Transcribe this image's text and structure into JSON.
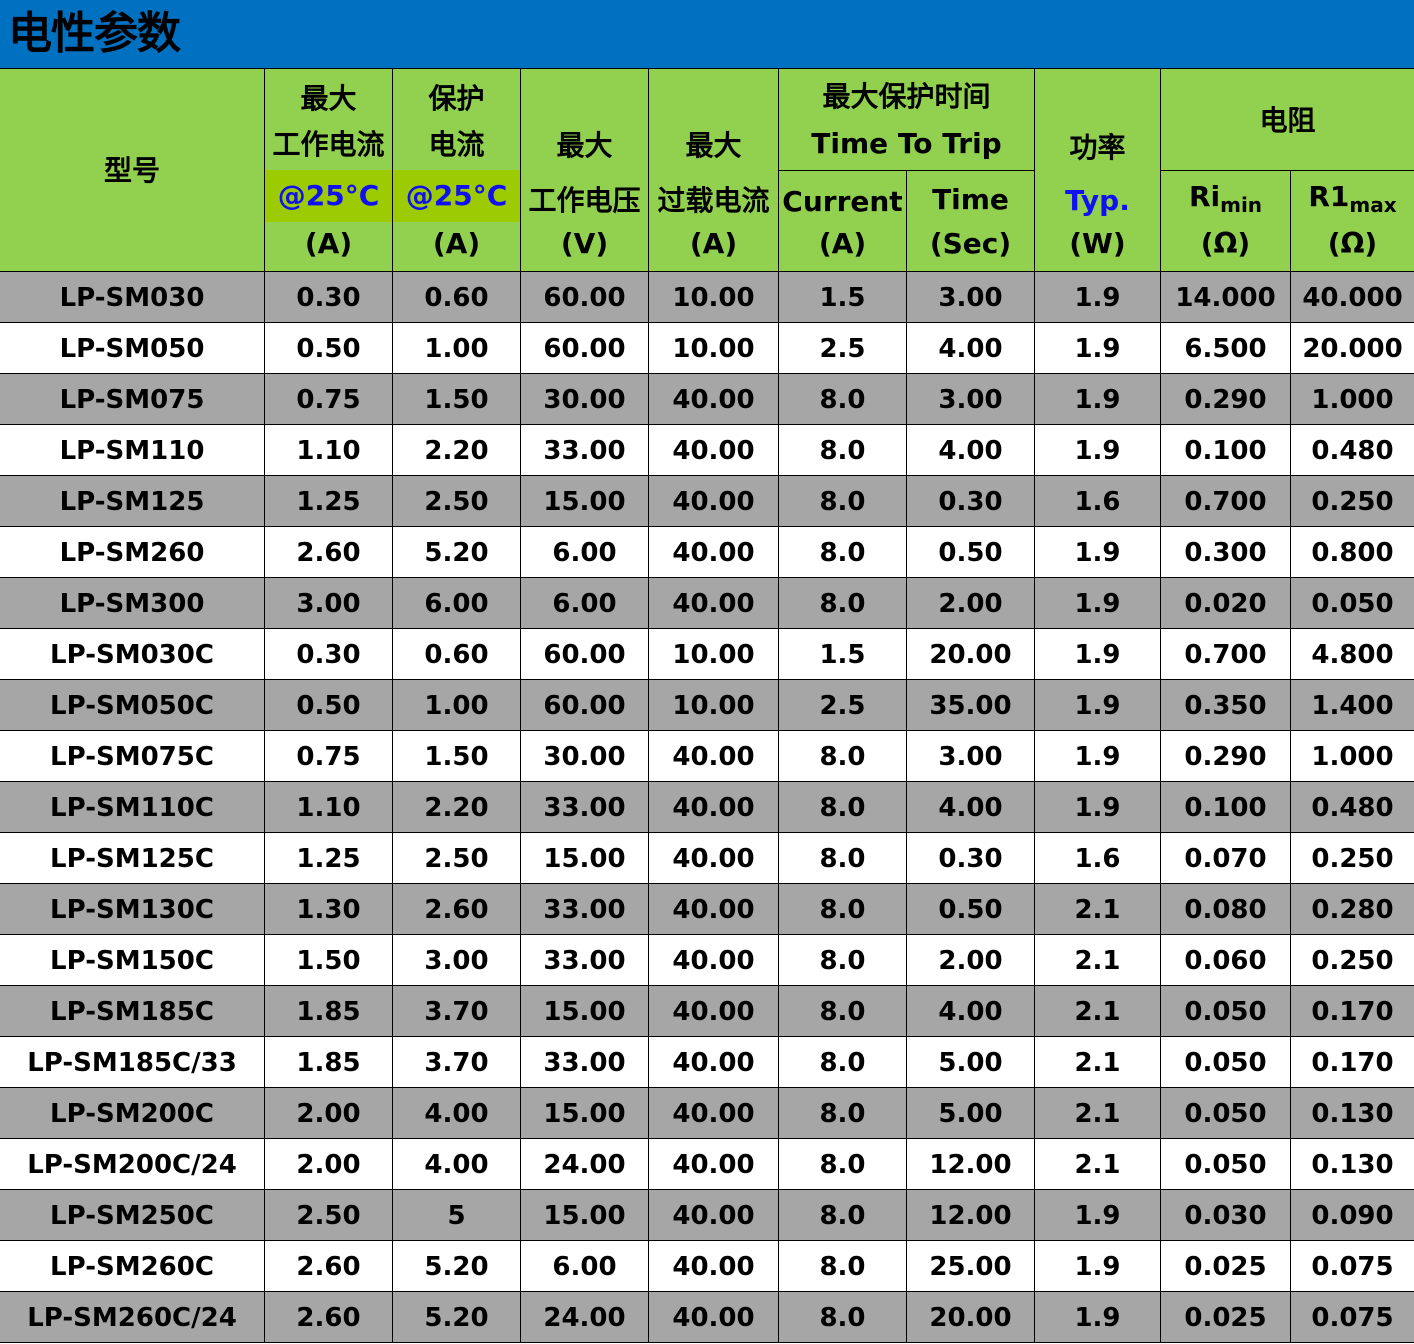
{
  "title": "电性参数",
  "header": {
    "model": "型号",
    "max_current": {
      "l1": "最大",
      "l2": "工作电流",
      "cond": "@25°C",
      "unit": "(A)"
    },
    "trip_current": {
      "l1": "保护",
      "l2": "电流",
      "cond": "@25°C",
      "unit": "(A)"
    },
    "max_voltage": {
      "l1": "最大",
      "l2": "工作电压",
      "unit": "(V)"
    },
    "max_overload": {
      "l1": "最大",
      "l2": "过载电流",
      "unit": "(A)"
    },
    "ttt": {
      "l1": "最大保护时间",
      "l2": "Time To Trip",
      "current": "Current",
      "current_unit": "(A)",
      "time": "Time",
      "time_unit": "(Sec)"
    },
    "power": {
      "l1": "功率",
      "typ": "Typ.",
      "unit": "(W)"
    },
    "resistance": {
      "l1": "电阻",
      "rmin": "Ri",
      "rmin_sub": "min",
      "rmax": "R1",
      "rmax_sub": "max",
      "unit": "(Ω)"
    }
  },
  "colors": {
    "title_bg": "#0070C0",
    "header_bg": "#92D050",
    "highlight": "#9BCB00",
    "row_gray": "#A6A6A6",
    "blue_text": "#1010F0"
  },
  "rows": [
    [
      "LP-SM030",
      "0.30",
      "0.60",
      "60.00",
      "10.00",
      "1.5",
      "3.00",
      "1.9",
      "14.000",
      "40.000"
    ],
    [
      "LP-SM050",
      "0.50",
      "1.00",
      "60.00",
      "10.00",
      "2.5",
      "4.00",
      "1.9",
      "6.500",
      "20.000"
    ],
    [
      "LP-SM075",
      "0.75",
      "1.50",
      "30.00",
      "40.00",
      "8.0",
      "3.00",
      "1.9",
      "0.290",
      "1.000"
    ],
    [
      "LP-SM110",
      "1.10",
      "2.20",
      "33.00",
      "40.00",
      "8.0",
      "4.00",
      "1.9",
      "0.100",
      "0.480"
    ],
    [
      "LP-SM125",
      "1.25",
      "2.50",
      "15.00",
      "40.00",
      "8.0",
      "0.30",
      "1.6",
      "0.700",
      "0.250"
    ],
    [
      "LP-SM260",
      "2.60",
      "5.20",
      "6.00",
      "40.00",
      "8.0",
      "0.50",
      "1.9",
      "0.300",
      "0.800"
    ],
    [
      "LP-SM300",
      "3.00",
      "6.00",
      "6.00",
      "40.00",
      "8.0",
      "2.00",
      "1.9",
      "0.020",
      "0.050"
    ],
    [
      "LP-SM030C",
      "0.30",
      "0.60",
      "60.00",
      "10.00",
      "1.5",
      "20.00",
      "1.9",
      "0.700",
      "4.800"
    ],
    [
      "LP-SM050C",
      "0.50",
      "1.00",
      "60.00",
      "10.00",
      "2.5",
      "35.00",
      "1.9",
      "0.350",
      "1.400"
    ],
    [
      "LP-SM075C",
      "0.75",
      "1.50",
      "30.00",
      "40.00",
      "8.0",
      "3.00",
      "1.9",
      "0.290",
      "1.000"
    ],
    [
      "LP-SM110C",
      "1.10",
      "2.20",
      "33.00",
      "40.00",
      "8.0",
      "4.00",
      "1.9",
      "0.100",
      "0.480"
    ],
    [
      "LP-SM125C",
      "1.25",
      "2.50",
      "15.00",
      "40.00",
      "8.0",
      "0.30",
      "1.6",
      "0.070",
      "0.250"
    ],
    [
      "LP-SM130C",
      "1.30",
      "2.60",
      "33.00",
      "40.00",
      "8.0",
      "0.50",
      "2.1",
      "0.080",
      "0.280"
    ],
    [
      "LP-SM150C",
      "1.50",
      "3.00",
      "33.00",
      "40.00",
      "8.0",
      "2.00",
      "2.1",
      "0.060",
      "0.250"
    ],
    [
      "LP-SM185C",
      "1.85",
      "3.70",
      "15.00",
      "40.00",
      "8.0",
      "4.00",
      "2.1",
      "0.050",
      "0.170"
    ],
    [
      "LP-SM185C/33",
      "1.85",
      "3.70",
      "33.00",
      "40.00",
      "8.0",
      "5.00",
      "2.1",
      "0.050",
      "0.170"
    ],
    [
      "LP-SM200C",
      "2.00",
      "4.00",
      "15.00",
      "40.00",
      "8.0",
      "5.00",
      "2.1",
      "0.050",
      "0.130"
    ],
    [
      "LP-SM200C/24",
      "2.00",
      "4.00",
      "24.00",
      "40.00",
      "8.0",
      "12.00",
      "2.1",
      "0.050",
      "0.130"
    ],
    [
      "LP-SM250C",
      "2.50",
      "5",
      "15.00",
      "40.00",
      "8.0",
      "12.00",
      "1.9",
      "0.030",
      "0.090"
    ],
    [
      "LP-SM260C",
      "2.60",
      "5.20",
      "6.00",
      "40.00",
      "8.0",
      "25.00",
      "1.9",
      "0.025",
      "0.075"
    ],
    [
      "LP-SM260C/24",
      "2.60",
      "5.20",
      "24.00",
      "40.00",
      "8.0",
      "20.00",
      "1.9",
      "0.025",
      "0.075"
    ]
  ]
}
